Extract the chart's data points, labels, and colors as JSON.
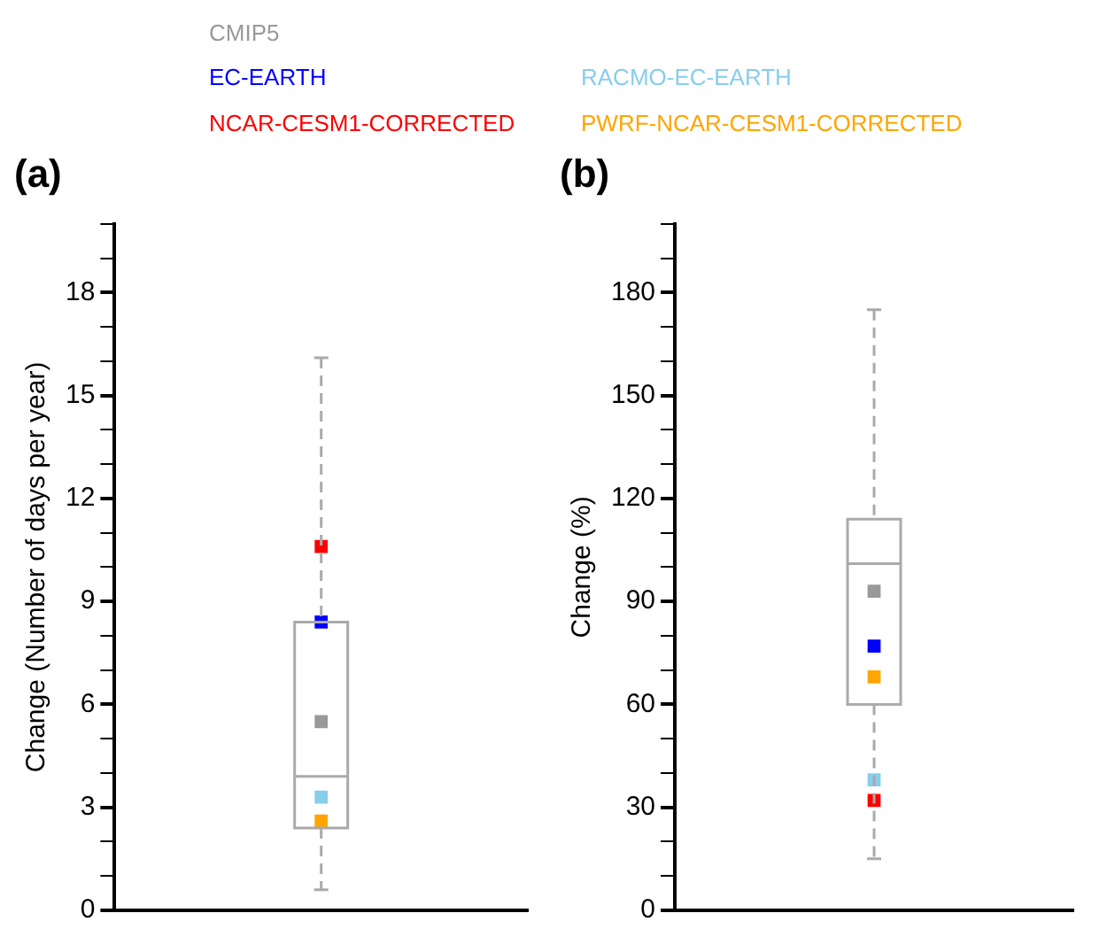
{
  "chart_data": [
    {
      "type": "box",
      "title": "(a)",
      "ylabel": "Change (Number of days per year)",
      "categories": [
        null
      ],
      "legend": "top",
      "grid": false,
      "marker": "square",
      "boxes": [
        {
          "low": 0.6,
          "q1": 2.4,
          "median": 3.9,
          "q3": 8.4,
          "high": 16.1
        }
      ],
      "ylim": [
        0,
        20
      ],
      "yticks": [
        0,
        {
          "value": 1,
          "label": null
        },
        {
          "value": 2,
          "label": null
        },
        3,
        {
          "value": 4,
          "label": null
        },
        {
          "value": 5,
          "label": null
        },
        6,
        {
          "value": 7,
          "label": null
        },
        {
          "value": 8,
          "label": null
        },
        9,
        {
          "value": 10,
          "label": null
        },
        {
          "value": 11,
          "label": null
        },
        12,
        {
          "value": 13,
          "label": null
        },
        {
          "value": 14,
          "label": null
        },
        15,
        {
          "value": 16,
          "label": null
        },
        {
          "value": 17,
          "label": null
        },
        18,
        {
          "value": 19,
          "label": null
        },
        {
          "value": 20,
          "label": null
        }
      ],
      "series": [
        {
          "name": "CMIP5",
          "type": "scatter",
          "color": "#999999",
          "values": [
            5.5
          ]
        },
        {
          "name": "EC-EARTH",
          "type": "scatter",
          "color": "#0000ff",
          "values": [
            8.4
          ]
        },
        {
          "name": "RACMO-EC-EARTH",
          "type": "scatter",
          "color": "#87ceeb",
          "values": [
            3.3
          ]
        },
        {
          "name": "NCAR-CESM1-CORRECTED",
          "type": "scatter",
          "color": "#ff0000",
          "values": [
            10.6
          ]
        },
        {
          "name": "PWRF-NCAR-CESM1-CORRECTED",
          "type": "scatter",
          "color": "#ffa500",
          "values": [
            2.6
          ]
        }
      ]
    },
    {
      "type": "box",
      "title": "(b)",
      "ylabel": "Change (%)",
      "categories": [
        null
      ],
      "grid": false,
      "marker": "square",
      "boxes": [
        {
          "low": 15,
          "q1": 60,
          "median": 101,
          "q3": 114,
          "high": 175
        }
      ],
      "ylim": [
        0,
        200
      ],
      "yticks": [
        0,
        {
          "value": 10,
          "label": null
        },
        {
          "value": 20,
          "label": null
        },
        30,
        {
          "value": 40,
          "label": null
        },
        {
          "value": 50,
          "label": null
        },
        60,
        {
          "value": 70,
          "label": null
        },
        {
          "value": 80,
          "label": null
        },
        90,
        {
          "value": 100,
          "label": null
        },
        {
          "value": 110,
          "label": null
        },
        120,
        {
          "value": 130,
          "label": null
        },
        {
          "value": 140,
          "label": null
        },
        150,
        {
          "value": 160,
          "label": null
        },
        {
          "value": 170,
          "label": null
        },
        180,
        {
          "value": 190,
          "label": null
        },
        {
          "value": 200,
          "label": null
        }
      ],
      "series": [
        {
          "type": "scatter",
          "color": "#999999",
          "values": [
            93
          ]
        },
        {
          "type": "scatter",
          "color": "#0000ff",
          "values": [
            77
          ]
        },
        {
          "type": "scatter",
          "color": "#87ceeb",
          "values": [
            38
          ]
        },
        {
          "type": "scatter",
          "color": "#ff0000",
          "values": [
            32
          ]
        },
        {
          "type": "scatter",
          "color": "#ffa500",
          "values": [
            68
          ]
        }
      ]
    }
  ]
}
